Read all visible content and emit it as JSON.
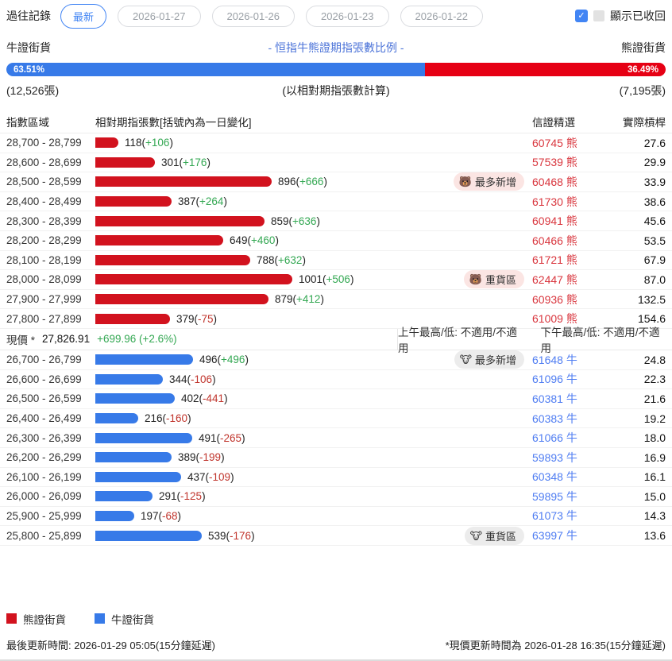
{
  "colors": {
    "accent": "#4285f4",
    "bull": "#377ae8",
    "bear": "#d2121e",
    "bear_bright": "#e60014",
    "bull_code": "#4f7df2",
    "bear_code": "#d9363e",
    "pos": "#34a853",
    "neg": "#c0342c",
    "badge_bear_bg": "#fbe5e3",
    "badge_bull_bg": "#ececec"
  },
  "history": {
    "label": "過往記錄",
    "buttons": [
      {
        "label": "最新",
        "active": true
      },
      {
        "label": "2026-01-27",
        "active": false
      },
      {
        "label": "2026-01-26",
        "active": false
      },
      {
        "label": "2026-01-23",
        "active": false
      },
      {
        "label": "2026-01-22",
        "active": false
      }
    ]
  },
  "show_recalled": {
    "label": "顯示已收回",
    "checked": true,
    "check_glyph": "✓"
  },
  "ratio": {
    "bull_label": "牛證街貨",
    "title": "- 恒指牛熊證期指張數比例 -",
    "bear_label": "熊證街貨",
    "bull_pct": "63.51%",
    "bear_pct": "36.49%",
    "bull_pct_value": 63.51,
    "bull_count": "(12,526張)",
    "note": "(以相對期指張數計算)",
    "bear_count": "(7,195張)"
  },
  "table_headers": {
    "zone": "指數區域",
    "contracts": "相對期指張數[括號內為一日變化]",
    "pick": "信證精選",
    "leverage": "實際槓桿"
  },
  "bear_rows": [
    {
      "zone": "28,700 - 28,799",
      "value": 118,
      "change": "+106",
      "badge": null,
      "code": "60745 熊",
      "leverage": "27.6"
    },
    {
      "zone": "28,600 - 28,699",
      "value": 301,
      "change": "+176",
      "badge": null,
      "code": "57539 熊",
      "leverage": "29.9"
    },
    {
      "zone": "28,500 - 28,599",
      "value": 896,
      "change": "+666",
      "badge": {
        "icon": "🐻",
        "label": "最多新增"
      },
      "code": "60468 熊",
      "leverage": "33.9"
    },
    {
      "zone": "28,400 - 28,499",
      "value": 387,
      "change": "+264",
      "badge": null,
      "code": "61730 熊",
      "leverage": "38.6"
    },
    {
      "zone": "28,300 - 28,399",
      "value": 859,
      "change": "+636",
      "badge": null,
      "code": "60941 熊",
      "leverage": "45.6"
    },
    {
      "zone": "28,200 - 28,299",
      "value": 649,
      "change": "+460",
      "badge": null,
      "code": "60466 熊",
      "leverage": "53.5"
    },
    {
      "zone": "28,100 - 28,199",
      "value": 788,
      "change": "+632",
      "badge": null,
      "code": "61721 熊",
      "leverage": "67.9"
    },
    {
      "zone": "28,000 - 28,099",
      "value": 1001,
      "change": "+506",
      "badge": {
        "icon": "🐻",
        "label": "重貨區"
      },
      "code": "62447 熊",
      "leverage": "87.0"
    },
    {
      "zone": "27,900 - 27,999",
      "value": 879,
      "change": "+412",
      "badge": null,
      "code": "60936 熊",
      "leverage": "132.5"
    },
    {
      "zone": "27,800 - 27,899",
      "value": 379,
      "change": "-75",
      "badge": null,
      "code": "61009 熊",
      "leverage": "154.6"
    }
  ],
  "current_price": {
    "label": "現價 *",
    "price": "27,826.91",
    "change": "+699.96 (+2.6%)",
    "am": "上午最高/低: 不適用/不適用",
    "pm": "下午最高/低: 不適用/不適用"
  },
  "bull_rows": [
    {
      "zone": "26,700 - 26,799",
      "value": 496,
      "change": "+496",
      "badge": {
        "icon": "🐮",
        "label": "最多新增"
      },
      "code": "61648 牛",
      "leverage": "24.8"
    },
    {
      "zone": "26,600 - 26,699",
      "value": 344,
      "change": "-106",
      "badge": null,
      "code": "61096 牛",
      "leverage": "22.3"
    },
    {
      "zone": "26,500 - 26,599",
      "value": 402,
      "change": "-441",
      "badge": null,
      "code": "60381 牛",
      "leverage": "21.6"
    },
    {
      "zone": "26,400 - 26,499",
      "value": 216,
      "change": "-160",
      "badge": null,
      "code": "60383 牛",
      "leverage": "19.2"
    },
    {
      "zone": "26,300 - 26,399",
      "value": 491,
      "change": "-265",
      "badge": null,
      "code": "61066 牛",
      "leverage": "18.0"
    },
    {
      "zone": "26,200 - 26,299",
      "value": 389,
      "change": "-199",
      "badge": null,
      "code": "59893 牛",
      "leverage": "16.9"
    },
    {
      "zone": "26,100 - 26,199",
      "value": 437,
      "change": "-109",
      "badge": null,
      "code": "60348 牛",
      "leverage": "16.1"
    },
    {
      "zone": "26,000 - 26,099",
      "value": 291,
      "change": "-125",
      "badge": null,
      "code": "59895 牛",
      "leverage": "15.0"
    },
    {
      "zone": "25,900 - 25,999",
      "value": 197,
      "change": "-68",
      "badge": null,
      "code": "61073 牛",
      "leverage": "14.3"
    },
    {
      "zone": "25,800 - 25,899",
      "value": 539,
      "change": "-176",
      "badge": {
        "icon": "🐮",
        "label": "重貨區"
      },
      "code": "63997 牛",
      "leverage": "13.6"
    }
  ],
  "legend": {
    "bear": "熊證街貨",
    "bull": "牛證街貨"
  },
  "footer": {
    "last_update": "最後更新時間: 2026-01-29 05:05(15分鐘延遲)",
    "price_update": "*現價更新時間為 2026-01-28 16:35(15分鐘延遲)"
  }
}
